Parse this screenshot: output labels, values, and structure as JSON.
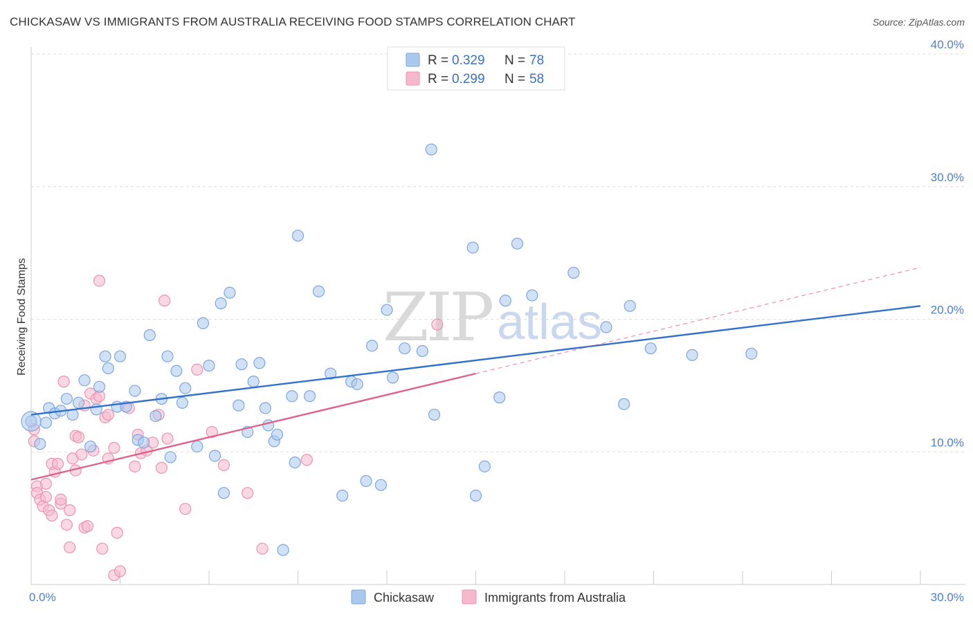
{
  "title": "CHICKASAW VS IMMIGRANTS FROM AUSTRALIA RECEIVING FOOD STAMPS CORRELATION CHART",
  "source": "Source: ZipAtlas.com",
  "watermark": {
    "zip": "ZIP",
    "atlas": "atlas"
  },
  "colors": {
    "chickasaw_fill": "#aac8ee",
    "chickasaw_stroke": "#7ea6dc",
    "chickasaw_line": "#2f6fce",
    "australia_fill": "#f6b8cc",
    "australia_stroke": "#ec93b0",
    "australia_line": "#e0608c",
    "grid": "#dddddd",
    "tick_text": "#4a7fd0"
  },
  "legend": {
    "rows": [
      {
        "r_label": "R =",
        "r_value": "0.329",
        "n_label": "N =",
        "n_value": "78"
      },
      {
        "r_label": "R =",
        "r_value": "0.299",
        "n_label": "N =",
        "n_value": "58"
      }
    ]
  },
  "bottom_legend": [
    "Chickasaw",
    "Immigrants from Australia"
  ],
  "chart_data": {
    "type": "scatter",
    "title": "CHICKASAW VS IMMIGRANTS FROM AUSTRALIA RECEIVING FOOD STAMPS CORRELATION CHART",
    "xlabel": "",
    "ylabel": "Receiving Food Stamps",
    "xlim": [
      0,
      30
    ],
    "ylim": [
      0,
      40
    ],
    "x_tick_labels": [
      {
        "value": 0,
        "label": "0.0%"
      },
      {
        "value": 30,
        "label": "30.0%"
      }
    ],
    "y_tick_labels": [
      {
        "value": 10,
        "label": "10.0%"
      },
      {
        "value": 20,
        "label": "20.0%"
      },
      {
        "value": 30,
        "label": "30.0%"
      },
      {
        "value": 40,
        "label": "40.0%"
      }
    ],
    "x_minor_ticks": [
      3,
      6,
      9,
      12,
      15,
      18,
      21,
      24,
      27,
      30
    ],
    "grid": true,
    "series": [
      {
        "name": "Chickasaw",
        "R": 0.329,
        "N": 78,
        "trend": {
          "x0": 0,
          "y0": 12.8,
          "x1": 30,
          "y1": 21.0,
          "dashed_extension": false
        },
        "points": [
          [
            0.0,
            12.3
          ],
          [
            0.3,
            10.6
          ],
          [
            0.5,
            12.2
          ],
          [
            0.6,
            13.3
          ],
          [
            0.8,
            12.9
          ],
          [
            1.0,
            13.1
          ],
          [
            1.2,
            14.0
          ],
          [
            1.4,
            12.8
          ],
          [
            1.6,
            13.7
          ],
          [
            1.8,
            15.4
          ],
          [
            2.0,
            10.4
          ],
          [
            2.2,
            13.2
          ],
          [
            2.3,
            14.9
          ],
          [
            2.5,
            17.2
          ],
          [
            2.6,
            16.3
          ],
          [
            2.9,
            13.4
          ],
          [
            3.0,
            17.2
          ],
          [
            3.2,
            13.4
          ],
          [
            3.5,
            14.6
          ],
          [
            3.6,
            10.9
          ],
          [
            3.8,
            10.7
          ],
          [
            4.0,
            18.8
          ],
          [
            4.2,
            12.7
          ],
          [
            4.4,
            14.0
          ],
          [
            4.6,
            17.2
          ],
          [
            4.7,
            9.6
          ],
          [
            4.9,
            16.1
          ],
          [
            5.1,
            13.7
          ],
          [
            5.2,
            14.8
          ],
          [
            5.6,
            10.4
          ],
          [
            5.8,
            19.7
          ],
          [
            6.0,
            16.5
          ],
          [
            6.2,
            9.7
          ],
          [
            6.4,
            21.2
          ],
          [
            6.5,
            6.9
          ],
          [
            6.7,
            22.0
          ],
          [
            7.0,
            13.5
          ],
          [
            7.1,
            16.6
          ],
          [
            7.3,
            11.5
          ],
          [
            7.5,
            15.3
          ],
          [
            7.7,
            16.7
          ],
          [
            7.9,
            13.3
          ],
          [
            8.0,
            12.0
          ],
          [
            8.2,
            10.8
          ],
          [
            8.3,
            11.3
          ],
          [
            8.5,
            2.6
          ],
          [
            8.8,
            14.2
          ],
          [
            8.9,
            9.2
          ],
          [
            9.0,
            26.3
          ],
          [
            9.4,
            14.2
          ],
          [
            9.7,
            22.1
          ],
          [
            10.1,
            15.9
          ],
          [
            10.5,
            6.7
          ],
          [
            10.8,
            15.3
          ],
          [
            11.0,
            15.1
          ],
          [
            11.3,
            7.8
          ],
          [
            11.5,
            18.0
          ],
          [
            11.8,
            7.5
          ],
          [
            12.0,
            20.7
          ],
          [
            12.2,
            15.6
          ],
          [
            12.6,
            17.8
          ],
          [
            13.2,
            17.6
          ],
          [
            13.5,
            32.8
          ],
          [
            13.6,
            12.8
          ],
          [
            14.9,
            25.4
          ],
          [
            15.0,
            6.7
          ],
          [
            15.3,
            8.9
          ],
          [
            15.8,
            14.1
          ],
          [
            16.0,
            21.4
          ],
          [
            16.4,
            25.7
          ],
          [
            16.9,
            21.8
          ],
          [
            18.3,
            23.5
          ],
          [
            19.4,
            19.4
          ],
          [
            20.0,
            13.6
          ],
          [
            20.2,
            21.0
          ],
          [
            20.9,
            17.8
          ],
          [
            22.3,
            17.3
          ],
          [
            24.3,
            17.4
          ]
        ]
      },
      {
        "name": "Immigrants from Australia",
        "R": 0.299,
        "N": 58,
        "trend": {
          "x0": 0,
          "y0": 7.9,
          "x1": 15.0,
          "y1": 15.9,
          "dashed_to_x": 30,
          "dashed_to_y": 23.9
        },
        "points": [
          [
            0.1,
            11.7
          ],
          [
            0.1,
            10.8
          ],
          [
            0.2,
            7.4
          ],
          [
            0.2,
            6.9
          ],
          [
            0.3,
            6.4
          ],
          [
            0.4,
            5.9
          ],
          [
            0.5,
            7.6
          ],
          [
            0.5,
            6.6
          ],
          [
            0.6,
            5.6
          ],
          [
            0.7,
            5.2
          ],
          [
            0.7,
            9.1
          ],
          [
            0.8,
            8.5
          ],
          [
            0.9,
            9.1
          ],
          [
            1.0,
            6.1
          ],
          [
            1.0,
            6.4
          ],
          [
            1.1,
            15.3
          ],
          [
            1.2,
            4.5
          ],
          [
            1.3,
            5.6
          ],
          [
            1.3,
            2.8
          ],
          [
            1.4,
            9.5
          ],
          [
            1.5,
            8.6
          ],
          [
            1.5,
            11.2
          ],
          [
            1.6,
            11.1
          ],
          [
            1.7,
            9.8
          ],
          [
            1.8,
            4.3
          ],
          [
            1.8,
            13.5
          ],
          [
            1.9,
            4.4
          ],
          [
            2.0,
            14.4
          ],
          [
            2.1,
            10.1
          ],
          [
            2.2,
            14.0
          ],
          [
            2.3,
            14.2
          ],
          [
            2.3,
            22.9
          ],
          [
            2.4,
            2.7
          ],
          [
            2.5,
            12.6
          ],
          [
            2.6,
            12.8
          ],
          [
            2.6,
            9.5
          ],
          [
            2.8,
            10.3
          ],
          [
            2.8,
            0.7
          ],
          [
            2.9,
            3.9
          ],
          [
            3.0,
            1.0
          ],
          [
            3.3,
            13.3
          ],
          [
            3.5,
            8.9
          ],
          [
            3.6,
            11.3
          ],
          [
            3.7,
            9.9
          ],
          [
            3.9,
            10.1
          ],
          [
            4.1,
            10.7
          ],
          [
            4.3,
            12.8
          ],
          [
            4.4,
            8.8
          ],
          [
            4.5,
            21.4
          ],
          [
            4.6,
            11.0
          ],
          [
            5.2,
            5.7
          ],
          [
            5.6,
            16.2
          ],
          [
            6.1,
            11.5
          ],
          [
            6.5,
            9.0
          ],
          [
            7.3,
            6.9
          ],
          [
            7.8,
            2.7
          ],
          [
            9.3,
            9.4
          ],
          [
            13.7,
            19.6
          ]
        ]
      }
    ]
  }
}
